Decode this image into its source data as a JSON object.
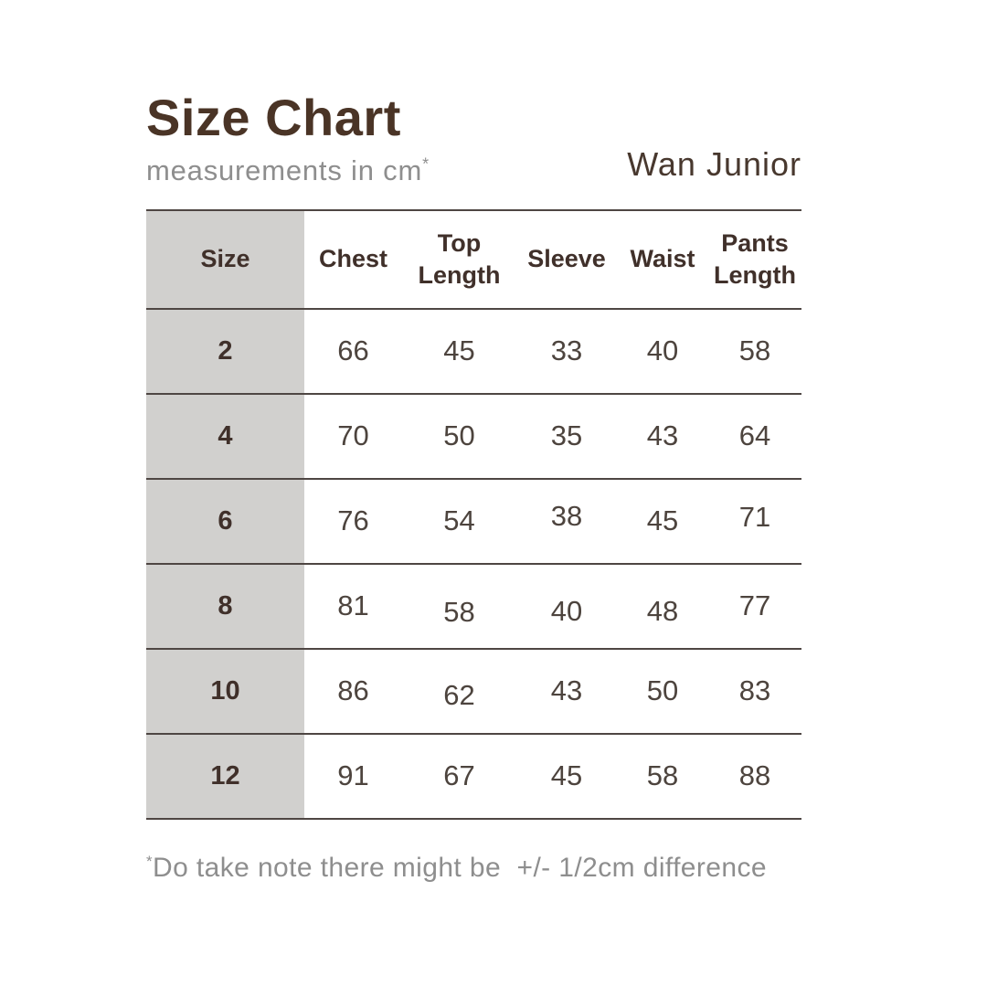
{
  "header": {
    "title": "Size Chart",
    "subtitle": "measurements in cm",
    "subtitle_sup": "*",
    "brand": "Wan Junior"
  },
  "table": {
    "columns": [
      "Size",
      "Chest",
      "Top Length",
      "Sleeve",
      "Waist",
      "Pants Length"
    ],
    "rows": [
      {
        "size": "2",
        "values": [
          "66",
          "45",
          "33",
          "40",
          "58"
        ]
      },
      {
        "size": "4",
        "values": [
          "70",
          "50",
          "35",
          "43",
          "64"
        ]
      },
      {
        "size": "6",
        "values": [
          "76",
          "54",
          "38",
          "45",
          "71"
        ]
      },
      {
        "size": "8",
        "values": [
          "81",
          "58",
          "40",
          "48",
          "77"
        ]
      },
      {
        "size": "10",
        "values": [
          "86",
          "62",
          "43",
          "50",
          "83"
        ]
      },
      {
        "size": "12",
        "values": [
          "91",
          "67",
          "45",
          "58",
          "88"
        ]
      }
    ]
  },
  "footnote": {
    "sup": "*",
    "text": "Do take note there might be  +/- 1/2cm difference"
  },
  "colors": {
    "title_brown": "#4a3426",
    "header_text": "#40302a",
    "number_text": "#4d443e",
    "size_column_bg": "#d1d0ce",
    "row_border": "#4e4643",
    "muted_gray": "#8e8e8e",
    "background": "#ffffff"
  },
  "chart_data": {
    "type": "table",
    "title": "Size Chart",
    "subtitle": "measurements in cm*",
    "brand": "Wan Junior",
    "unit": "cm",
    "columns": [
      "Size",
      "Chest",
      "Top Length",
      "Sleeve",
      "Waist",
      "Pants Length"
    ],
    "rows": [
      [
        2,
        66,
        45,
        33,
        40,
        58
      ],
      [
        4,
        70,
        50,
        35,
        43,
        64
      ],
      [
        6,
        76,
        54,
        38,
        45,
        71
      ],
      [
        8,
        81,
        58,
        40,
        48,
        77
      ],
      [
        10,
        86,
        62,
        43,
        50,
        83
      ],
      [
        12,
        91,
        67,
        45,
        58,
        88
      ]
    ],
    "note": "*Do take note there might be  +/- 1/2cm difference"
  }
}
